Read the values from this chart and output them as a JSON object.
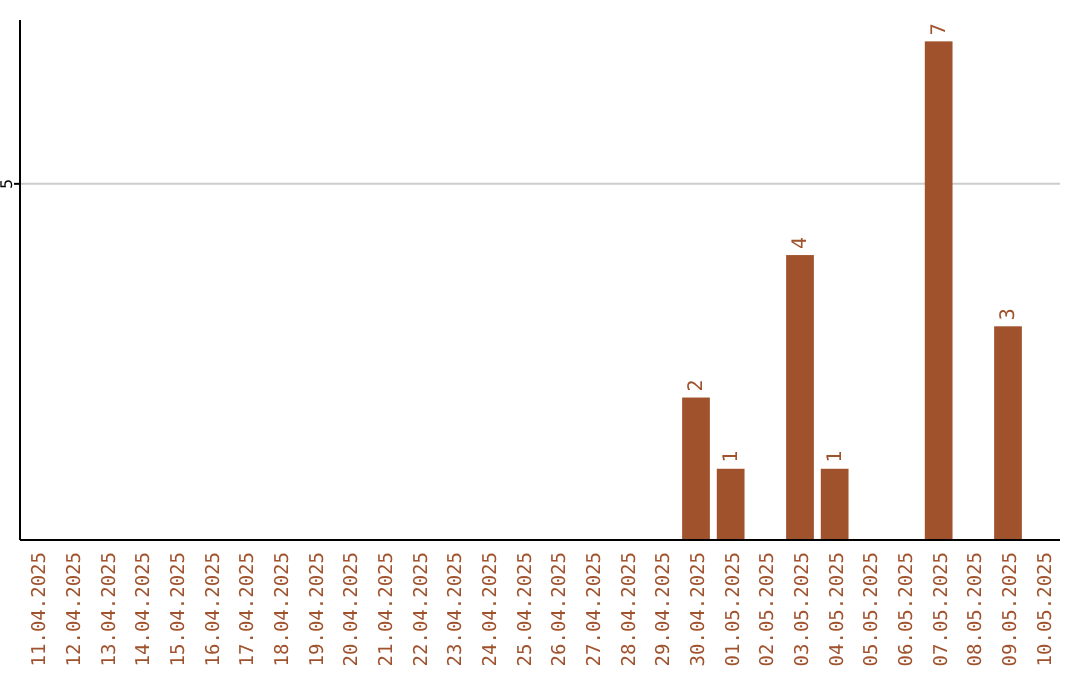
{
  "chart_data": {
    "type": "bar",
    "categories": [
      "11.04.2025",
      "12.04.2025",
      "13.04.2025",
      "14.04.2025",
      "15.04.2025",
      "16.04.2025",
      "17.04.2025",
      "18.04.2025",
      "19.04.2025",
      "20.04.2025",
      "21.04.2025",
      "22.04.2025",
      "23.04.2025",
      "24.04.2025",
      "25.04.2025",
      "26.04.2025",
      "27.04.2025",
      "28.04.2025",
      "29.04.2025",
      "30.04.2025",
      "01.05.2025",
      "02.05.2025",
      "03.05.2025",
      "04.05.2025",
      "05.05.2025",
      "06.05.2025",
      "07.05.2025",
      "08.05.2025",
      "09.05.2025",
      "10.05.2025"
    ],
    "values": [
      null,
      null,
      null,
      null,
      null,
      null,
      null,
      null,
      null,
      null,
      null,
      null,
      null,
      null,
      null,
      null,
      null,
      null,
      null,
      2,
      1,
      null,
      4,
      1,
      null,
      null,
      7,
      null,
      3,
      null
    ],
    "color": "#a0522d",
    "ylim": [
      0,
      7.3
    ],
    "yticks": [
      5
    ],
    "grid": "y",
    "data_labels": true
  }
}
